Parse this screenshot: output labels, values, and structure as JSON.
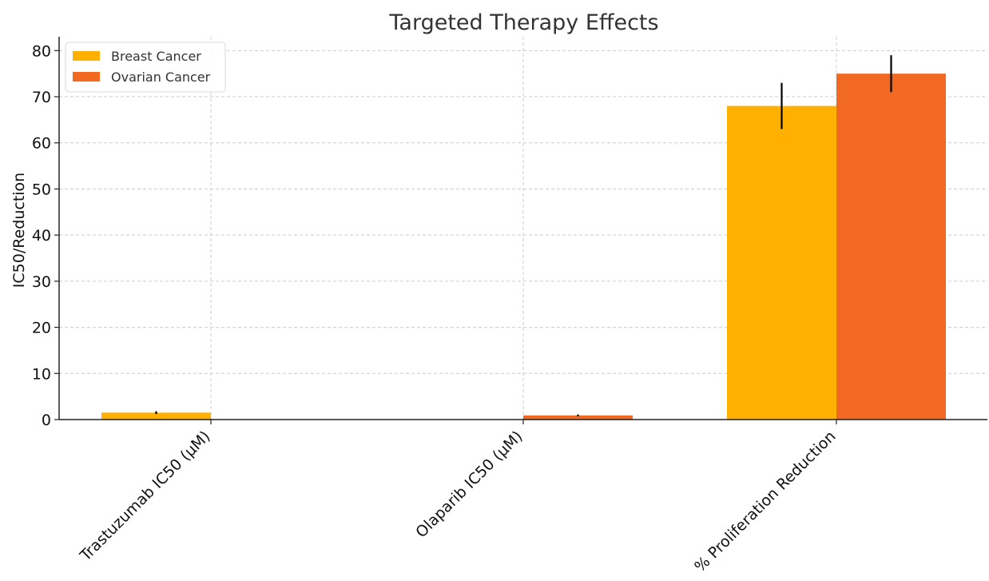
{
  "chart_data": {
    "type": "bar",
    "title": "Targeted Therapy Effects",
    "xlabel": "",
    "ylabel": "IC50/Reduction",
    "categories": [
      "Trastuzumab IC50 (µM)",
      "Olaparib IC50 (µM)",
      "% Proliferation Reduction"
    ],
    "series": [
      {
        "name": "Breast Cancer",
        "color": "#FFB000",
        "values": [
          1.5,
          null,
          68
        ],
        "errors": [
          0.3,
          null,
          5
        ]
      },
      {
        "name": "Ovarian Cancer",
        "color": "#F26A22",
        "values": [
          null,
          0.9,
          75
        ],
        "errors": [
          null,
          0.2,
          4
        ]
      }
    ],
    "ylim": [
      0,
      83
    ],
    "yticks": [
      0,
      10,
      20,
      30,
      40,
      50,
      60,
      70,
      80
    ],
    "grid": true,
    "legend_position": "top-left"
  }
}
